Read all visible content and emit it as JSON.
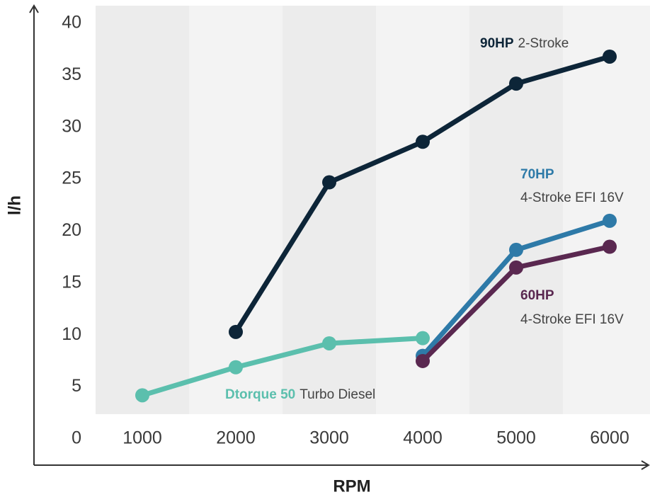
{
  "chart_data": {
    "type": "line",
    "x_label": "RPM",
    "y_label": "l/h",
    "categories": [
      "1000",
      "2000",
      "3000",
      "4000",
      "5000",
      "6000"
    ],
    "ylim": [
      0,
      40
    ],
    "yticks": [
      0,
      5,
      10,
      15,
      20,
      25,
      30,
      35,
      40
    ],
    "series": [
      {
        "name": "90HP",
        "description": "2-Stroke",
        "color": "#0d2538",
        "values": [
          null,
          10.3,
          24.7,
          28.6,
          34.2,
          36.8
        ]
      },
      {
        "name": "70HP",
        "description": "4-Stroke EFI 16V",
        "color": "#2e7aa8",
        "values": [
          null,
          null,
          null,
          8.0,
          18.2,
          21.0
        ]
      },
      {
        "name": "60HP",
        "description": "4-Stroke EFI 16V",
        "color": "#5a2850",
        "values": [
          null,
          null,
          null,
          7.5,
          16.5,
          18.5
        ]
      },
      {
        "name": "Dtorque 50",
        "description": "Turbo Diesel",
        "color": "#5bbfad",
        "values": [
          4.2,
          6.9,
          9.2,
          9.7,
          null,
          null
        ]
      }
    ]
  }
}
